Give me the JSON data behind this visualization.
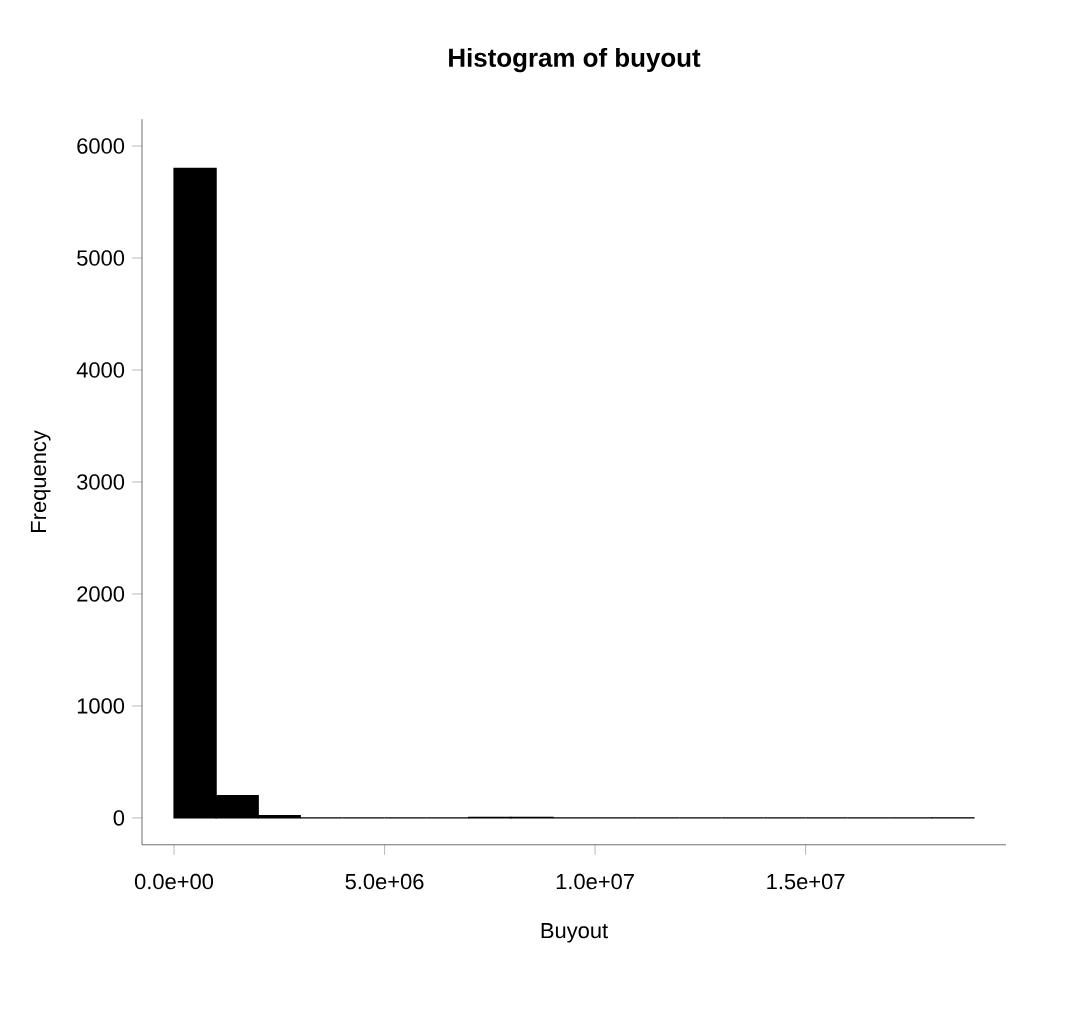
{
  "chart_data": {
    "type": "histogram",
    "title": "Histogram of buyout",
    "xlabel": "Buyout",
    "ylabel": "Frequency",
    "bins": [
      0,
      1000000,
      2000000,
      3000000,
      4000000,
      5000000,
      6000000,
      7000000,
      8000000,
      9000000,
      10000000,
      11000000,
      12000000,
      13000000,
      14000000,
      15000000,
      16000000,
      17000000,
      18000000,
      19000000
    ],
    "values": [
      5800,
      200,
      20,
      0,
      0,
      0,
      0,
      5,
      5,
      0,
      0,
      0,
      0,
      0,
      0,
      0,
      0,
      0,
      1
    ],
    "color": "#000000",
    "xlim": [
      -760000,
      19760000
    ],
    "ylim": [
      -240,
      6240
    ],
    "xticks": [
      {
        "value": 0,
        "label": "0.0e+00"
      },
      {
        "value": 5000000,
        "label": "5.0e+06"
      },
      {
        "value": 10000000,
        "label": "1.0e+07"
      },
      {
        "value": 15000000,
        "label": "1.5e+07"
      }
    ],
    "yticks": [
      0,
      1000,
      2000,
      3000,
      4000,
      5000,
      6000
    ],
    "grid": false
  }
}
